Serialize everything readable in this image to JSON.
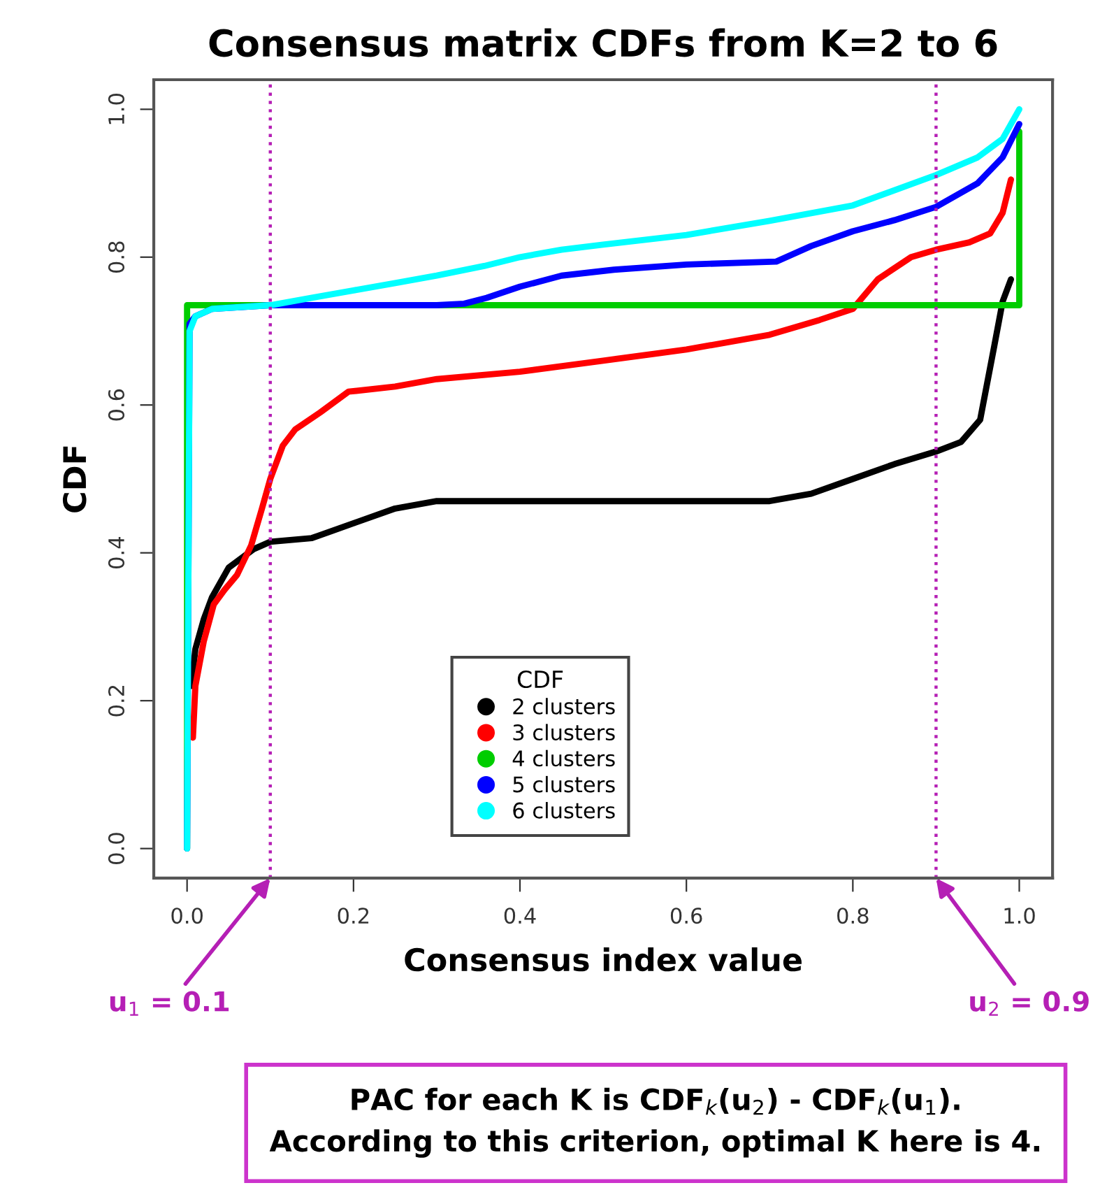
{
  "chart_data": {
    "type": "line",
    "title": "Consensus matrix CDFs from K=2 to 6",
    "xlabel": "Consensus index value",
    "ylabel": "CDF",
    "legend_title": "CDF",
    "legend": "bottom",
    "grid": false,
    "marker": "none",
    "line_style": "solid",
    "xlim": [
      -0.04,
      1.04
    ],
    "ylim": [
      -0.04,
      1.04
    ],
    "xticks": [
      {
        "value": 0,
        "label": "0.0"
      },
      0.2,
      0.4,
      0.6,
      0.8,
      {
        "value": 1,
        "label": "1.0"
      }
    ],
    "yticks": [
      {
        "value": 0,
        "label": "0.0"
      },
      0.2,
      0.4,
      0.6,
      0.8,
      {
        "value": 1,
        "label": "1.0"
      }
    ],
    "series": [
      {
        "name": "2 clusters",
        "color": "#000000",
        "x": [
          0.005,
          0.01,
          0.02,
          0.03,
          0.05,
          0.08,
          0.1,
          0.15,
          0.2,
          0.25,
          0.3,
          0.4,
          0.5,
          0.6,
          0.7,
          0.75,
          0.8,
          0.85,
          0.9,
          0.93,
          0.953,
          0.97,
          0.98,
          0.99
        ],
        "values": [
          0.22,
          0.27,
          0.31,
          0.34,
          0.38,
          0.405,
          0.415,
          0.42,
          0.44,
          0.46,
          0.47,
          0.47,
          0.47,
          0.47,
          0.47,
          0.48,
          0.5,
          0.52,
          0.537,
          0.55,
          0.58,
          0.68,
          0.74,
          0.77
        ]
      },
      {
        "name": "3 clusters",
        "color": "#ff0000",
        "x": [
          0.007,
          0.01,
          0.02,
          0.032,
          0.045,
          0.06,
          0.077,
          0.09,
          0.1,
          0.115,
          0.13,
          0.16,
          0.194,
          0.25,
          0.3,
          0.4,
          0.5,
          0.6,
          0.7,
          0.76,
          0.8,
          0.83,
          0.87,
          0.9,
          0.94,
          0.965,
          0.98,
          0.99
        ],
        "values": [
          0.15,
          0.22,
          0.28,
          0.33,
          0.35,
          0.37,
          0.41,
          0.46,
          0.5,
          0.545,
          0.567,
          0.59,
          0.618,
          0.625,
          0.635,
          0.645,
          0.66,
          0.675,
          0.695,
          0.715,
          0.73,
          0.77,
          0.8,
          0.81,
          0.82,
          0.832,
          0.86,
          0.905
        ]
      },
      {
        "name": "4 clusters",
        "color": "#00cd00",
        "x": [
          0.0,
          0.0,
          1.0,
          1.0
        ],
        "values": [
          0.0,
          0.735,
          0.735,
          0.97
        ]
      },
      {
        "name": "5 clusters",
        "color": "#0000ff",
        "x": [
          0.0,
          0.003,
          0.01,
          0.03,
          0.1,
          0.2,
          0.3,
          0.333,
          0.36,
          0.4,
          0.45,
          0.513,
          0.6,
          0.708,
          0.75,
          0.8,
          0.85,
          0.9,
          0.95,
          0.98,
          1.0
        ],
        "values": [
          0.0,
          0.71,
          0.72,
          0.73,
          0.735,
          0.735,
          0.735,
          0.737,
          0.745,
          0.76,
          0.775,
          0.783,
          0.79,
          0.794,
          0.815,
          0.835,
          0.85,
          0.868,
          0.9,
          0.935,
          0.98
        ]
      },
      {
        "name": "6 clusters",
        "color": "#00ffff",
        "x": [
          0.0,
          0.003,
          0.01,
          0.03,
          0.1,
          0.15,
          0.2,
          0.25,
          0.3,
          0.357,
          0.4,
          0.45,
          0.5,
          0.6,
          0.7,
          0.8,
          0.9,
          0.95,
          0.98,
          1.0
        ],
        "values": [
          0.0,
          0.7,
          0.72,
          0.73,
          0.735,
          0.745,
          0.755,
          0.765,
          0.775,
          0.788,
          0.8,
          0.81,
          0.817,
          0.83,
          0.849,
          0.87,
          0.911,
          0.935,
          0.96,
          1.0
        ]
      }
    ],
    "ref_lines": [
      {
        "axis": "x",
        "value": 0.1,
        "label": "u$_{1}$ = 0.1",
        "color": "#b51fb5",
        "line_style": "dotted"
      },
      {
        "axis": "x",
        "value": 0.9,
        "label": "u$_{2}$ = 0.9",
        "color": "#b51fb5",
        "line_style": "dotted"
      }
    ],
    "annotations": [
      "PAC for each K is CDF$_{k}$(u$_{2}$) - CDF$_{k}$(u$_{1}$).\nAccording to this criterion, optimal K here is 4."
    ]
  }
}
